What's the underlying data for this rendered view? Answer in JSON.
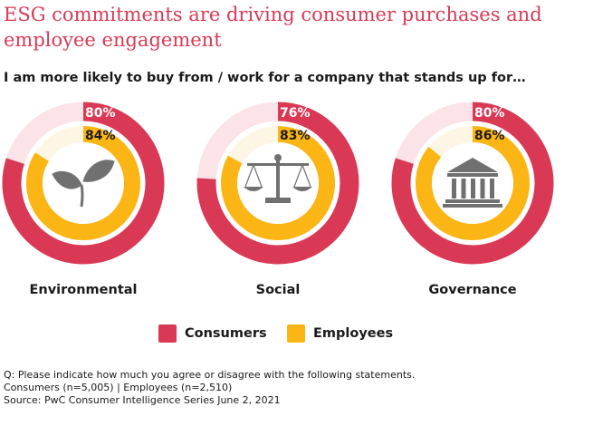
{
  "chart_data": {
    "type": "donut",
    "title": "ESG commitments are driving consumer purchases and employee engagement",
    "subtitle": "I am more likely to buy from / work for a company that stands up for…",
    "categories": [
      "Environmental",
      "Social",
      "Governance"
    ],
    "icons": [
      "leaf-icon",
      "scales-icon",
      "building-icon"
    ],
    "series": [
      {
        "name": "Consumers",
        "values": [
          80,
          76,
          80
        ],
        "labels": [
          "80%",
          "76%",
          "80%"
        ],
        "color": "#d93954",
        "track": "#fbe3e7"
      },
      {
        "name": "Employees",
        "values": [
          84,
          83,
          86
        ],
        "labels": [
          "84%",
          "83%",
          "86%"
        ],
        "color": "#fbb514",
        "track": "#fef6e4"
      }
    ],
    "legend_position": "bottom"
  },
  "footnote": {
    "question": "Q: Please indicate how much you agree or disagree with the following statements.",
    "sample": "Consumers (n=5,005) | Employees (n=2,510)",
    "source": "Source: PwC Consumer Intelligence Series June 2, 2021"
  }
}
